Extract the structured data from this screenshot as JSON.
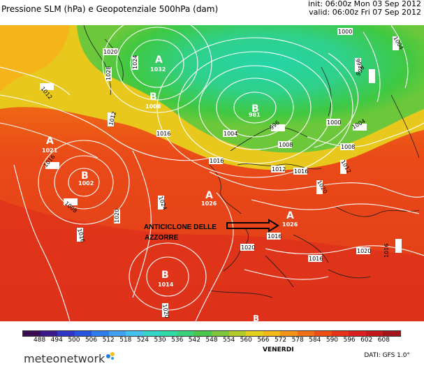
{
  "header": {
    "title": "Pressione SLM (hPa) e Geopotenziale 500hPa (dam)",
    "init": "init: 06:00z Mon 03 Sep 2012",
    "valid": "valid: 06:00z Fri 07 Sep 2012"
  },
  "map": {
    "annotation_line1": "ANTICICLONE DELLE",
    "annotation_line2": "AZZORRE",
    "pressure_centres": [
      {
        "letter": "A",
        "value": "1032"
      },
      {
        "letter": "B",
        "value": "1008"
      },
      {
        "letter": "B",
        "value": "981"
      },
      {
        "letter": "A",
        "value": "1021"
      },
      {
        "letter": "B",
        "value": "1002"
      },
      {
        "letter": "A",
        "value": "1026"
      },
      {
        "letter": "A",
        "value": "1026"
      },
      {
        "letter": "B",
        "value": "1014"
      },
      {
        "letter": "B",
        "value": ""
      }
    ],
    "isobar_labels": [
      "1024",
      "1020",
      "1028",
      "1012",
      "1012",
      "1016",
      "1016",
      "1008",
      "1020",
      "1024",
      "1016",
      "1020",
      "1004",
      "996",
      "1000",
      "1004",
      "1008",
      "1012",
      "1016",
      "1020",
      "1012",
      "1008",
      "1000",
      "992",
      "996",
      "1004",
      "1016",
      "1016",
      "1020",
      "1016",
      "1020",
      "1016"
    ],
    "colors": {
      "low": "#25d5a8",
      "mid_green": "#3fc842",
      "yellow": "#e8d21c",
      "orange": "#f27a12",
      "red": "#ea3a1a",
      "deep_red": "#d81c22"
    }
  },
  "colorbar": {
    "ticks": [
      "488",
      "494",
      "500",
      "506",
      "512",
      "518",
      "524",
      "530",
      "536",
      "542",
      "548",
      "554",
      "560",
      "566",
      "572",
      "578",
      "584",
      "590",
      "596",
      "602",
      "608"
    ],
    "colors": [
      "#3b0a55",
      "#3c1a8c",
      "#3236c6",
      "#2456e0",
      "#2f7bf0",
      "#3fa0f2",
      "#42c2ec",
      "#34d6c8",
      "#2fdba6",
      "#3ad27a",
      "#4bc84c",
      "#7cc83a",
      "#b4cc2a",
      "#e6d01e",
      "#f3b81a",
      "#f59418",
      "#f27014",
      "#ee4e16",
      "#e8331a",
      "#dc2020",
      "#c4181c",
      "#a4121c"
    ],
    "day_label": "VENERDI"
  },
  "footer": {
    "brand": "meteonetwork",
    "source": "DATI:  GFS  1.0°"
  }
}
